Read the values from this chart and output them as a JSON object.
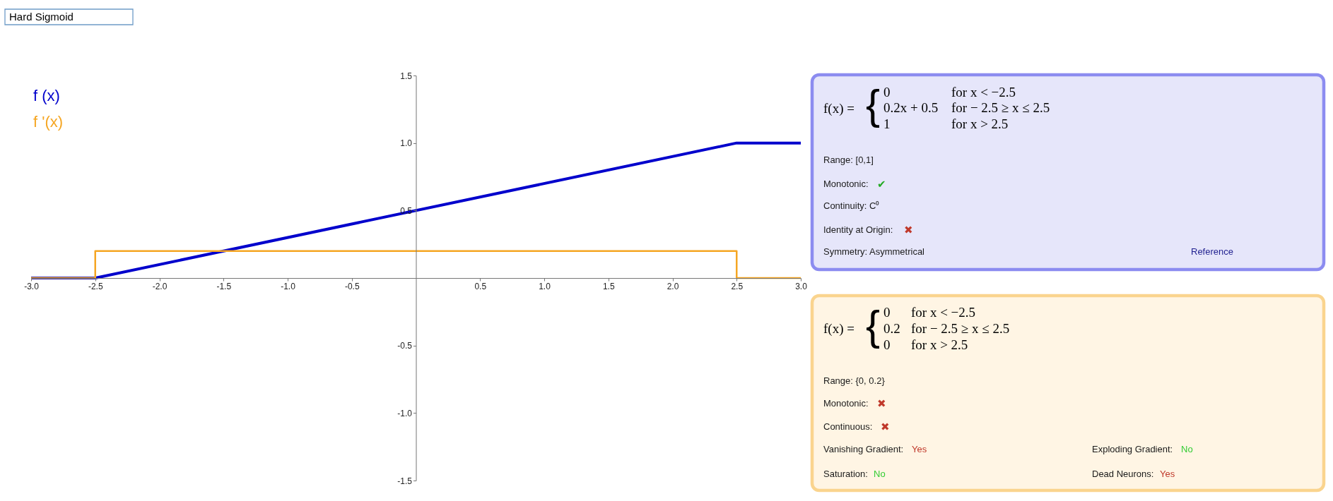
{
  "chart_data": [
    {
      "type": "line",
      "title": "Hard Sigmoid",
      "x": [
        -3,
        -2.5,
        2.5,
        3
      ],
      "series": [
        {
          "name": "f (x)",
          "color": "#0000cc",
          "values": [
            0,
            0,
            1,
            1
          ]
        },
        {
          "name": "f '(x)",
          "type": "step",
          "color": "#f5a623",
          "values": [
            0,
            0.2,
            0,
            0
          ]
        }
      ],
      "xlim": [
        -3,
        3
      ],
      "ylim": [
        -1.5,
        1.5
      ],
      "xticks": [
        {
          "value": -3,
          "label": "-3.0"
        },
        -2.5,
        {
          "value": -2,
          "label": "-2.0"
        },
        -1.5,
        {
          "value": -1,
          "label": "-1.0"
        },
        -0.5,
        0.5,
        {
          "value": 1,
          "label": "1.0"
        },
        1.5,
        {
          "value": 2,
          "label": "2.0"
        },
        2.5,
        {
          "value": 3,
          "label": "3.0"
        }
      ],
      "yticks": [
        -1.5,
        {
          "value": -1,
          "label": "-1.0"
        },
        -0.5,
        0.5,
        {
          "value": 1,
          "label": "1.0"
        },
        1.5
      ],
      "grid": false,
      "legend": "top left"
    },
    {
      "type": "other",
      "annotations": [
        "f(x) =",
        "{",
        "0",
        "for x < −2.5",
        "0.2x + 0.5",
        "for − 2.5 ≥ x ≤ 2.5",
        "1",
        "for x > 2.5",
        "Range: [0,1]",
        "Monotonic:",
        "✔",
        "Continuity: C⁰",
        "Identity at Origin:",
        "✖",
        "Symmetry: Asymmetrical",
        "Reference"
      ]
    },
    {
      "type": "other",
      "annotations": [
        "f(x) =",
        "{",
        "0",
        "for x < −2.5",
        "0.2",
        "for − 2.5 ≥ x ≤ 2.5",
        "0",
        "for x > 2.5",
        "Range: {0, 0.2}",
        "Monotonic:",
        "✖",
        "Continuous:",
        "✖",
        "Vanishing Gradient:",
        "Yes",
        "Exploding Gradient:",
        "No",
        "Saturation:",
        "No",
        "Dead Neurons:",
        "Yes"
      ]
    }
  ]
}
